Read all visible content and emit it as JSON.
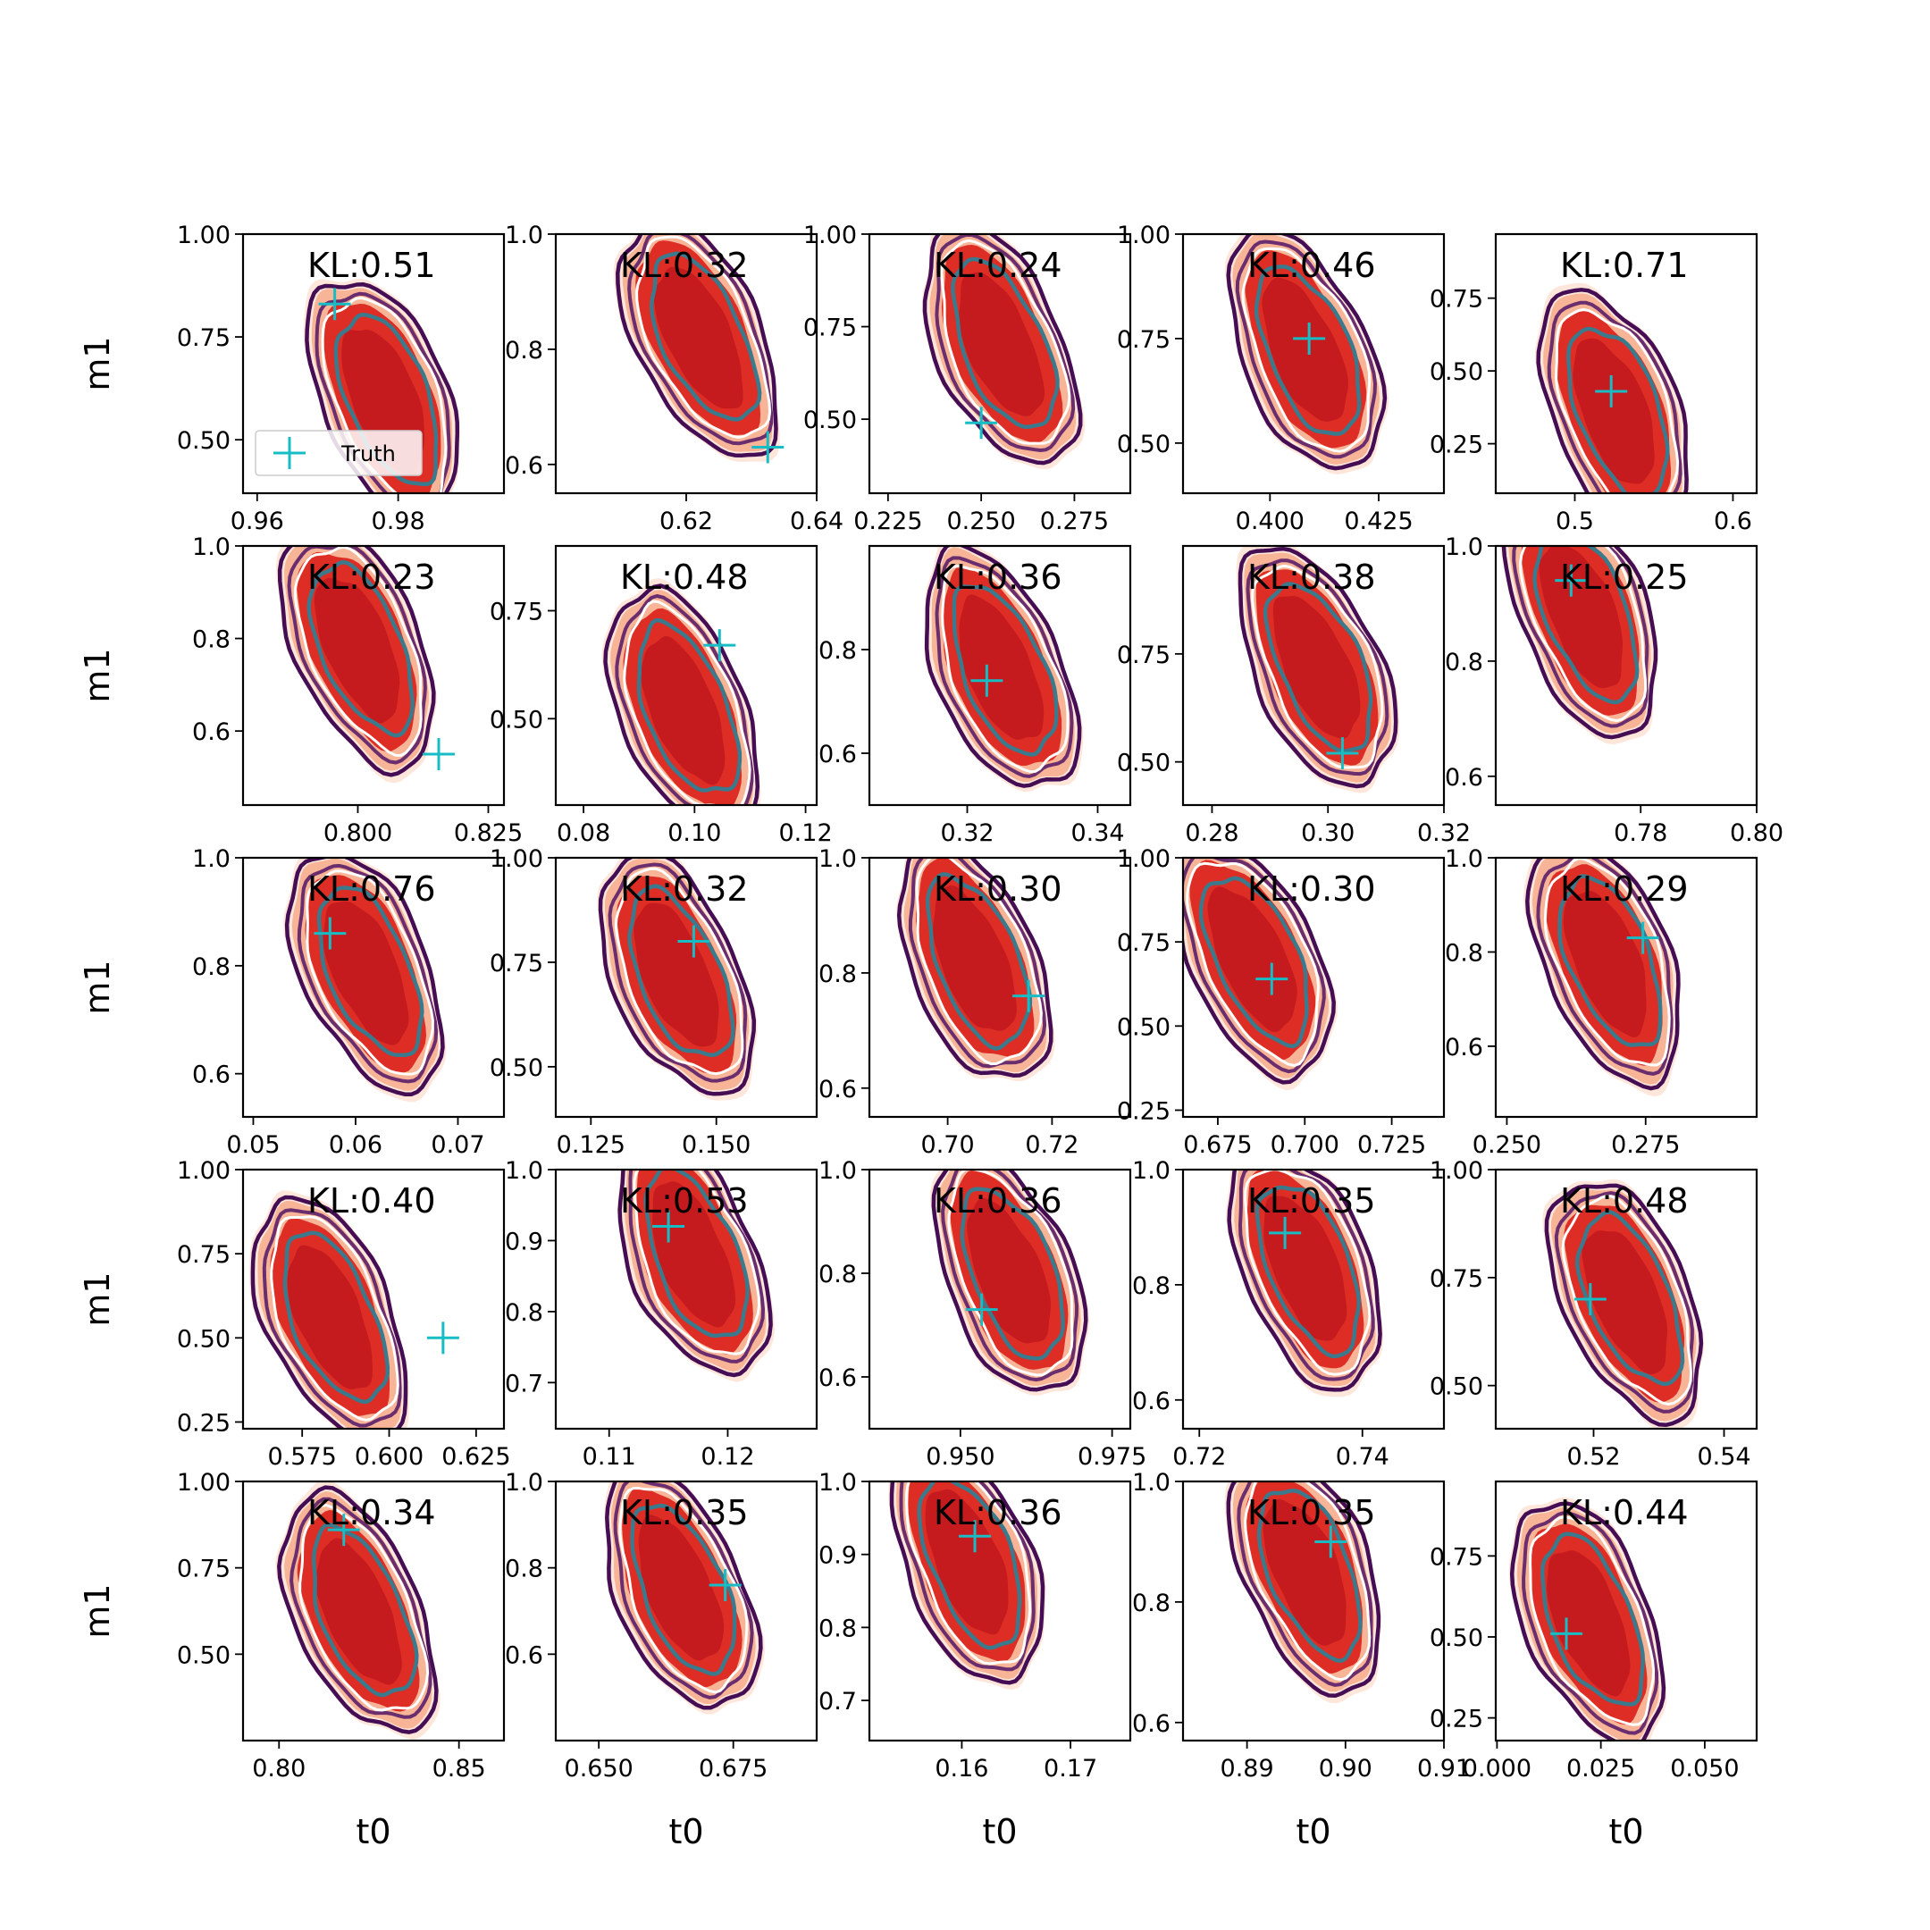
{
  "colors": {
    "shade_outer": "#fee6db",
    "shade_mid": "#f8b497",
    "shade_inner": "#dd2d24",
    "shade_core": "#c51b1f",
    "contour_outer": "#440d54",
    "contour_mid": "#6a2d6e",
    "contour_white": "#ffffff",
    "contour_inner": "#3a7a8c",
    "truth_marker": "#17bcc4"
  },
  "chart_data": {
    "type": "contour",
    "grid": {
      "rows": 5,
      "cols": 5
    },
    "xlabel": "t0",
    "ylabel": "m1",
    "legend": {
      "label": "Truth",
      "placement": "lower-left of first panel"
    },
    "panels": [
      {
        "kl": "KL:0.51",
        "xlim": [
          0.958,
          0.995
        ],
        "ylim": [
          0.37,
          1.0
        ],
        "xticks": [
          "0.96",
          "0.98"
        ],
        "yticks": [
          "0.50",
          "0.75",
          "1.00"
        ],
        "contour_center": [
          0.978,
          0.6
        ],
        "slope": -0.55,
        "truth": [
          0.971,
          0.83
        ],
        "legend": true
      },
      {
        "kl": "KL:0.32",
        "xlim": [
          0.6,
          0.64
        ],
        "ylim": [
          0.55,
          1.0
        ],
        "xticks": [
          "0.62",
          "0.64"
        ],
        "yticks": [
          "0.6",
          "0.8",
          "1.0"
        ],
        "contour_center": [
          0.622,
          0.82
        ],
        "slope": -0.7,
        "truth": [
          0.6325,
          0.63
        ]
      },
      {
        "kl": "KL:0.24",
        "xlim": [
          0.22,
          0.29
        ],
        "ylim": [
          0.3,
          1.0
        ],
        "xticks": [
          "0.225",
          "0.250",
          "0.275"
        ],
        "yticks": [
          "0.50",
          "0.75",
          "1.00"
        ],
        "contour_center": [
          0.255,
          0.7
        ],
        "slope": -0.6,
        "truth": [
          0.25,
          0.49
        ]
      },
      {
        "kl": "KL:0.46",
        "xlim": [
          0.38,
          0.44
        ],
        "ylim": [
          0.38,
          1.0
        ],
        "xticks": [
          "0.400",
          "0.425"
        ],
        "yticks": [
          "0.50",
          "0.75",
          "1.00"
        ],
        "contour_center": [
          0.408,
          0.72
        ],
        "slope": -0.6,
        "truth": [
          0.409,
          0.75
        ]
      },
      {
        "kl": "KL:0.71",
        "xlim": [
          0.45,
          0.615
        ],
        "ylim": [
          0.08,
          0.97
        ],
        "xticks": [
          "0.5",
          "0.6"
        ],
        "yticks": [
          "0.25",
          "0.50",
          "0.75"
        ],
        "contour_center": [
          0.525,
          0.36
        ],
        "slope": -0.5,
        "truth": [
          0.523,
          0.43
        ]
      },
      {
        "kl": "KL:0.23",
        "xlim": [
          0.778,
          0.828
        ],
        "ylim": [
          0.44,
          1.0
        ],
        "xticks": [
          "0.800",
          "0.825"
        ],
        "yticks": [
          "0.6",
          "0.8",
          "1.0"
        ],
        "contour_center": [
          0.8,
          0.78
        ],
        "slope": -0.6,
        "truth": [
          0.8155,
          0.55
        ]
      },
      {
        "kl": "KL:0.48",
        "xlim": [
          0.075,
          0.122
        ],
        "ylim": [
          0.3,
          0.9
        ],
        "xticks": [
          "0.08",
          "0.10",
          "0.12"
        ],
        "yticks": [
          "0.50",
          "0.75"
        ],
        "contour_center": [
          0.098,
          0.52
        ],
        "slope": -0.55,
        "truth": [
          0.1045,
          0.67
        ]
      },
      {
        "kl": "KL:0.36",
        "xlim": [
          0.305,
          0.345
        ],
        "ylim": [
          0.5,
          1.0
        ],
        "xticks": [
          "0.32",
          "0.34"
        ],
        "yticks": [
          "0.6",
          "0.8"
        ],
        "contour_center": [
          0.325,
          0.76
        ],
        "slope": -0.6,
        "truth": [
          0.323,
          0.74
        ]
      },
      {
        "kl": "KL:0.38",
        "xlim": [
          0.275,
          0.32
        ],
        "ylim": [
          0.4,
          1.0
        ],
        "xticks": [
          "0.28",
          "0.30",
          "0.32"
        ],
        "yticks": [
          "0.50",
          "0.75"
        ],
        "contour_center": [
          0.298,
          0.72
        ],
        "slope": -0.65,
        "truth": [
          0.3025,
          0.52
        ]
      },
      {
        "kl": "KL:0.25",
        "xlim": [
          0.755,
          0.8
        ],
        "ylim": [
          0.55,
          1.0
        ],
        "xticks": [
          "0.78",
          "0.80"
        ],
        "yticks": [
          "0.6",
          "0.8",
          "1.0"
        ],
        "contour_center": [
          0.77,
          0.88
        ],
        "slope": -0.55,
        "truth": [
          0.768,
          0.94
        ]
      },
      {
        "kl": "KL:0.76",
        "xlim": [
          0.049,
          0.0745
        ],
        "ylim": [
          0.52,
          1.0
        ],
        "xticks": [
          "0.05",
          "0.06",
          "0.07"
        ],
        "yticks": [
          "0.6",
          "0.8",
          "1.0"
        ],
        "contour_center": [
          0.061,
          0.79
        ],
        "slope": -0.6,
        "truth": [
          0.0575,
          0.86
        ]
      },
      {
        "kl": "KL:0.32",
        "xlim": [
          0.118,
          0.17
        ],
        "ylim": [
          0.38,
          1.0
        ],
        "xticks": [
          "0.125",
          "0.150"
        ],
        "yticks": [
          "0.50",
          "0.75",
          "1.00"
        ],
        "contour_center": [
          0.142,
          0.72
        ],
        "slope": -0.6,
        "truth": [
          0.1455,
          0.8
        ]
      },
      {
        "kl": "KL:0.30",
        "xlim": [
          0.685,
          0.735
        ],
        "ylim": [
          0.55,
          1.0
        ],
        "xticks": [
          "0.70",
          "0.72"
        ],
        "yticks": [
          "0.6",
          "0.8",
          "1.0"
        ],
        "contour_center": [
          0.705,
          0.82
        ],
        "slope": -0.55,
        "truth": [
          0.7155,
          0.76
        ]
      },
      {
        "kl": "KL:0.30",
        "xlim": [
          0.665,
          0.74
        ],
        "ylim": [
          0.23,
          1.0
        ],
        "xticks": [
          "0.675",
          "0.700",
          "0.725"
        ],
        "yticks": [
          "0.25",
          "0.50",
          "0.75",
          "1.00"
        ],
        "contour_center": [
          0.685,
          0.7
        ],
        "slope": -0.7,
        "truth": [
          0.6905,
          0.64
        ]
      },
      {
        "kl": "KL:0.29",
        "xlim": [
          0.248,
          0.295
        ],
        "ylim": [
          0.45,
          1.0
        ],
        "xticks": [
          "0.250",
          "0.275"
        ],
        "yticks": [
          "0.6",
          "0.8",
          "1.0"
        ],
        "contour_center": [
          0.268,
          0.78
        ],
        "slope": -0.55,
        "truth": [
          0.2745,
          0.83
        ]
      },
      {
        "kl": "KL:0.40",
        "xlim": [
          0.558,
          0.633
        ],
        "ylim": [
          0.23,
          1.0
        ],
        "xticks": [
          "0.575",
          "0.600",
          "0.625"
        ],
        "yticks": [
          "0.25",
          "0.50",
          "0.75",
          "1.00"
        ],
        "contour_center": [
          0.583,
          0.56
        ],
        "slope": -0.6,
        "truth": [
          0.6155,
          0.5
        ]
      },
      {
        "kl": "KL:0.53",
        "xlim": [
          0.1055,
          0.1275
        ],
        "ylim": [
          0.635,
          1.0
        ],
        "xticks": [
          "0.11",
          "0.12"
        ],
        "yticks": [
          "0.7",
          "0.8",
          "0.9",
          "1.0"
        ],
        "contour_center": [
          0.117,
          0.88
        ],
        "slope": -0.55,
        "truth": [
          0.115,
          0.92
        ]
      },
      {
        "kl": "KL:0.36",
        "xlim": [
          0.935,
          0.978
        ],
        "ylim": [
          0.5,
          1.0
        ],
        "xticks": [
          "0.950",
          "0.975"
        ],
        "yticks": [
          "0.6",
          "0.8",
          "1.0"
        ],
        "contour_center": [
          0.958,
          0.8
        ],
        "slope": -0.55,
        "truth": [
          0.9535,
          0.73
        ]
      },
      {
        "kl": "KL:0.35",
        "xlim": [
          0.718,
          0.75
        ],
        "ylim": [
          0.55,
          1.0
        ],
        "xticks": [
          "0.72",
          "0.74"
        ],
        "yticks": [
          "0.6",
          "0.8",
          "1.0"
        ],
        "contour_center": [
          0.733,
          0.83
        ],
        "slope": -0.55,
        "truth": [
          0.7305,
          0.89
        ]
      },
      {
        "kl": "KL:0.48",
        "xlim": [
          0.505,
          0.545
        ],
        "ylim": [
          0.4,
          1.0
        ],
        "xticks": [
          "0.52",
          "0.54"
        ],
        "yticks": [
          "0.50",
          "0.75",
          "1.00"
        ],
        "contour_center": [
          0.525,
          0.7
        ],
        "slope": -0.6,
        "truth": [
          0.5195,
          0.7
        ]
      },
      {
        "kl": "KL:0.34",
        "xlim": [
          0.79,
          0.8625
        ],
        "ylim": [
          0.25,
          1.0
        ],
        "xticks": [
          "0.80",
          "0.85"
        ],
        "yticks": [
          "0.50",
          "0.75",
          "1.00"
        ],
        "contour_center": [
          0.822,
          0.62
        ],
        "slope": -0.6,
        "truth": [
          0.818,
          0.86
        ]
      },
      {
        "kl": "KL:0.35",
        "xlim": [
          0.642,
          0.6905
        ],
        "ylim": [
          0.4,
          1.0
        ],
        "xticks": [
          "0.650",
          "0.675"
        ],
        "yticks": [
          "0.6",
          "0.8",
          "1.0"
        ],
        "contour_center": [
          0.665,
          0.75
        ],
        "slope": -0.6,
        "truth": [
          0.6735,
          0.76
        ]
      },
      {
        "kl": "KL:0.36",
        "xlim": [
          0.1515,
          0.1755
        ],
        "ylim": [
          0.645,
          1.0
        ],
        "xticks": [
          "0.16",
          "0.17"
        ],
        "yticks": [
          "0.7",
          "0.8",
          "0.9",
          "1.0"
        ],
        "contour_center": [
          0.1605,
          0.89
        ],
        "slope": -0.55,
        "truth": [
          0.1612,
          0.925
        ]
      },
      {
        "kl": "KL:0.35",
        "xlim": [
          0.8835,
          0.91
        ],
        "ylim": [
          0.57,
          1.0
        ],
        "xticks": [
          "0.89",
          "0.90",
          "0.91"
        ],
        "yticks": [
          "0.6",
          "0.8",
          "1.0"
        ],
        "contour_center": [
          0.896,
          0.85
        ],
        "slope": -0.55,
        "truth": [
          0.8985,
          0.9
        ]
      },
      {
        "kl": "KL:0.44",
        "xlim": [
          -0.0003,
          0.0625
        ],
        "ylim": [
          0.18,
          0.98
        ],
        "xticks": [
          "0.000",
          "0.025",
          "0.050"
        ],
        "yticks": [
          "0.25",
          "0.50",
          "0.75"
        ],
        "contour_center": [
          0.022,
          0.55
        ],
        "slope": -0.55,
        "truth": [
          0.0167,
          0.51
        ]
      }
    ]
  }
}
